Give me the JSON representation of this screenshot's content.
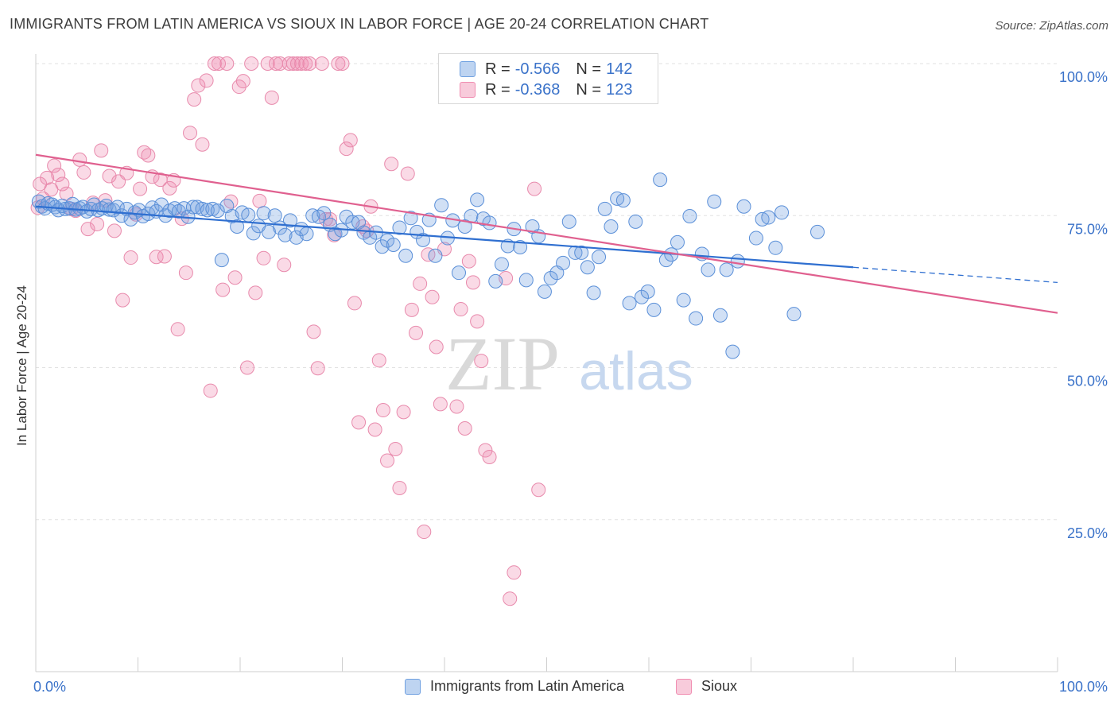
{
  "title": "IMMIGRANTS FROM LATIN AMERICA VS SIOUX IN LABOR FORCE | AGE 20-24 CORRELATION CHART",
  "source": "Source: ZipAtlas.com",
  "watermark": {
    "zip": "ZIP",
    "atlas": "atlas"
  },
  "legend_top": {
    "rows": [
      {
        "r_label": "R =",
        "r_value": "-0.566",
        "n_label": "N =",
        "n_value": "142",
        "color": "#6fa0e0"
      },
      {
        "r_label": "R =",
        "r_value": "-0.368",
        "n_label": "N =",
        "n_value": "123",
        "color": "#f08cb0"
      }
    ]
  },
  "legend_bottom": [
    {
      "label": "Immigrants from Latin America",
      "color": "#6fa0e0"
    },
    {
      "label": "Sioux",
      "color": "#f08cb0"
    }
  ],
  "chart_data": {
    "type": "scatter",
    "title": "IMMIGRANTS FROM LATIN AMERICA VS SIOUX IN LABOR FORCE | AGE 20-24 CORRELATION CHART",
    "xlabel": "",
    "ylabel": "In Labor Force | Age 20-24",
    "xlim": [
      0,
      100
    ],
    "ylim": [
      0,
      105
    ],
    "x_tick_labels": [
      {
        "value": 0,
        "label": "0.0%"
      },
      {
        "value": 100,
        "label": "100.0%"
      }
    ],
    "y_tick_labels": [
      {
        "value": 25,
        "label": "25.0%"
      },
      {
        "value": 50,
        "label": "50.0%"
      },
      {
        "value": 75,
        "label": "75.0%"
      },
      {
        "value": 100,
        "label": "100.0%"
      }
    ],
    "grid": true,
    "legend_position": "bottom",
    "series": [
      {
        "name": "Immigrants from Latin America",
        "color": "#6fa0e0",
        "stroke": "#5a8fd8",
        "trend": {
          "x0": 0,
          "y0": 76.5,
          "x1": 80,
          "y1": 66.5,
          "dash_to_x": 100,
          "dash_to_y": 64.0,
          "color": "#2f6fd0"
        },
        "points": [
          [
            0.3,
            77.3
          ],
          [
            0.6,
            76.5
          ],
          [
            0.9,
            76.2
          ],
          [
            1.2,
            77.0
          ],
          [
            1.6,
            76.8
          ],
          [
            1.9,
            76.4
          ],
          [
            2.2,
            75.9
          ],
          [
            2.6,
            76.6
          ],
          [
            2.9,
            76.1
          ],
          [
            3.3,
            76.2
          ],
          [
            3.6,
            76.9
          ],
          [
            3.9,
            76.0
          ],
          [
            4.3,
            76.2
          ],
          [
            4.6,
            76.4
          ],
          [
            5.0,
            75.7
          ],
          [
            5.4,
            76.1
          ],
          [
            5.7,
            76.8
          ],
          [
            6.1,
            75.9
          ],
          [
            6.5,
            76.2
          ],
          [
            6.9,
            76.6
          ],
          [
            7.2,
            76.0
          ],
          [
            7.6,
            75.9
          ],
          [
            8.0,
            76.4
          ],
          [
            8.4,
            75.0
          ],
          [
            8.9,
            76.1
          ],
          [
            9.3,
            74.4
          ],
          [
            9.7,
            75.5
          ],
          [
            10.1,
            75.9
          ],
          [
            10.5,
            74.9
          ],
          [
            11.0,
            75.3
          ],
          [
            11.4,
            76.3
          ],
          [
            11.8,
            75.7
          ],
          [
            12.3,
            76.8
          ],
          [
            12.7,
            75.0
          ],
          [
            13.1,
            75.8
          ],
          [
            13.6,
            76.2
          ],
          [
            14.0,
            75.7
          ],
          [
            14.5,
            76.2
          ],
          [
            14.9,
            74.8
          ],
          [
            15.4,
            76.4
          ],
          [
            15.8,
            76.4
          ],
          [
            16.3,
            76.1
          ],
          [
            16.8,
            75.9
          ],
          [
            17.3,
            76.1
          ],
          [
            17.8,
            75.8
          ],
          [
            18.2,
            67.7
          ],
          [
            18.7,
            76.6
          ],
          [
            19.2,
            74.9
          ],
          [
            19.7,
            73.2
          ],
          [
            20.2,
            75.5
          ],
          [
            20.8,
            75.1
          ],
          [
            21.3,
            72.1
          ],
          [
            21.8,
            73.3
          ],
          [
            22.3,
            75.4
          ],
          [
            22.8,
            72.3
          ],
          [
            23.4,
            75.0
          ],
          [
            23.9,
            73.0
          ],
          [
            24.4,
            71.8
          ],
          [
            24.9,
            74.2
          ],
          [
            25.5,
            71.4
          ],
          [
            26.0,
            72.8
          ],
          [
            26.5,
            72.0
          ],
          [
            27.1,
            75.0
          ],
          [
            27.7,
            74.8
          ],
          [
            28.2,
            75.4
          ],
          [
            28.8,
            73.5
          ],
          [
            29.3,
            72.0
          ],
          [
            29.9,
            72.6
          ],
          [
            30.4,
            74.8
          ],
          [
            31.0,
            73.9
          ],
          [
            31.6,
            73.9
          ],
          [
            32.1,
            72.2
          ],
          [
            32.7,
            71.4
          ],
          [
            33.3,
            72.2
          ],
          [
            33.9,
            69.9
          ],
          [
            34.4,
            70.9
          ],
          [
            35.0,
            70.2
          ],
          [
            35.6,
            73.0
          ],
          [
            36.2,
            68.4
          ],
          [
            36.7,
            74.6
          ],
          [
            37.3,
            72.3
          ],
          [
            37.9,
            71.0
          ],
          [
            38.5,
            74.3
          ],
          [
            39.1,
            68.4
          ],
          [
            39.7,
            76.7
          ],
          [
            40.3,
            71.3
          ],
          [
            40.8,
            74.2
          ],
          [
            41.4,
            65.6
          ],
          [
            42.0,
            73.2
          ],
          [
            42.6,
            74.9
          ],
          [
            43.2,
            77.6
          ],
          [
            43.8,
            74.5
          ],
          [
            44.4,
            73.8
          ],
          [
            45.0,
            64.2
          ],
          [
            45.6,
            67.0
          ],
          [
            46.2,
            70.0
          ],
          [
            46.8,
            72.8
          ],
          [
            47.4,
            69.8
          ],
          [
            48.0,
            64.4
          ],
          [
            48.6,
            73.2
          ],
          [
            49.2,
            71.6
          ],
          [
            49.8,
            62.5
          ],
          [
            50.4,
            64.7
          ],
          [
            51.0,
            65.6
          ],
          [
            51.6,
            67.2
          ],
          [
            52.2,
            74.0
          ],
          [
            52.8,
            68.9
          ],
          [
            53.4,
            68.9
          ],
          [
            54.0,
            66.5
          ],
          [
            54.6,
            62.3
          ],
          [
            55.1,
            68.2
          ],
          [
            55.7,
            76.1
          ],
          [
            56.3,
            73.2
          ],
          [
            56.9,
            77.8
          ],
          [
            57.5,
            77.5
          ],
          [
            58.1,
            60.6
          ],
          [
            58.7,
            74.0
          ],
          [
            59.3,
            61.6
          ],
          [
            59.9,
            62.5
          ],
          [
            60.5,
            59.5
          ],
          [
            61.1,
            80.9
          ],
          [
            61.7,
            67.7
          ],
          [
            62.2,
            68.6
          ],
          [
            62.8,
            70.6
          ],
          [
            63.4,
            61.1
          ],
          [
            64.0,
            74.9
          ],
          [
            64.6,
            58.1
          ],
          [
            65.2,
            68.7
          ],
          [
            65.8,
            66.1
          ],
          [
            66.4,
            77.3
          ],
          [
            67.0,
            58.6
          ],
          [
            67.6,
            66.1
          ],
          [
            68.2,
            52.6
          ],
          [
            68.7,
            67.5
          ],
          [
            69.3,
            76.5
          ],
          [
            70.5,
            71.3
          ],
          [
            71.1,
            74.4
          ],
          [
            71.7,
            74.7
          ],
          [
            72.4,
            69.7
          ],
          [
            73.0,
            75.5
          ],
          [
            74.2,
            58.8
          ],
          [
            76.5,
            72.3
          ]
        ]
      },
      {
        "name": "Sioux",
        "color": "#f08cb0",
        "stroke": "#e88aac",
        "trend": {
          "x0": 0,
          "y0": 85.0,
          "x1": 100,
          "y1": 59.0,
          "color": "#e0608f"
        },
        "points": [
          [
            0.2,
            76.3
          ],
          [
            0.4,
            80.2
          ],
          [
            0.7,
            77.8
          ],
          [
            1.1,
            81.2
          ],
          [
            1.5,
            79.3
          ],
          [
            1.8,
            83.2
          ],
          [
            2.2,
            81.7
          ],
          [
            2.6,
            80.2
          ],
          [
            3.0,
            78.6
          ],
          [
            3.5,
            76.1
          ],
          [
            3.9,
            75.8
          ],
          [
            4.3,
            84.2
          ],
          [
            4.7,
            82.1
          ],
          [
            5.1,
            72.8
          ],
          [
            5.6,
            77.1
          ],
          [
            6.0,
            73.6
          ],
          [
            6.4,
            85.7
          ],
          [
            6.8,
            77.5
          ],
          [
            7.2,
            81.5
          ],
          [
            7.7,
            72.5
          ],
          [
            8.1,
            80.6
          ],
          [
            8.5,
            61.1
          ],
          [
            8.9,
            82.0
          ],
          [
            9.3,
            68.1
          ],
          [
            9.8,
            75.2
          ],
          [
            10.2,
            79.4
          ],
          [
            10.6,
            85.4
          ],
          [
            11.0,
            84.9
          ],
          [
            11.4,
            81.4
          ],
          [
            11.8,
            68.2
          ],
          [
            12.2,
            80.9
          ],
          [
            12.6,
            68.3
          ],
          [
            13.1,
            79.5
          ],
          [
            13.5,
            80.8
          ],
          [
            13.9,
            56.3
          ],
          [
            14.3,
            74.5
          ],
          [
            14.7,
            65.6
          ],
          [
            15.1,
            88.6
          ],
          [
            15.5,
            94.1
          ],
          [
            15.9,
            96.4
          ],
          [
            16.3,
            86.7
          ],
          [
            16.7,
            97.2
          ],
          [
            17.1,
            46.2
          ],
          [
            17.5,
            100.0
          ],
          [
            17.9,
            100.0
          ],
          [
            18.3,
            62.8
          ],
          [
            18.7,
            100.0
          ],
          [
            19.1,
            77.3
          ],
          [
            19.5,
            64.8
          ],
          [
            19.9,
            96.2
          ],
          [
            20.3,
            97.1
          ],
          [
            20.7,
            50.0
          ],
          [
            21.1,
            100.0
          ],
          [
            21.5,
            62.3
          ],
          [
            21.9,
            77.4
          ],
          [
            22.3,
            68.0
          ],
          [
            22.7,
            100.0
          ],
          [
            23.1,
            94.4
          ],
          [
            23.5,
            100.0
          ],
          [
            23.9,
            100.0
          ],
          [
            24.3,
            66.9
          ],
          [
            24.8,
            100.0
          ],
          [
            25.2,
            100.0
          ],
          [
            25.6,
            100.0
          ],
          [
            26.0,
            100.0
          ],
          [
            26.4,
            100.0
          ],
          [
            26.8,
            100.0
          ],
          [
            27.2,
            55.9
          ],
          [
            27.6,
            49.9
          ],
          [
            28.0,
            100.0
          ],
          [
            28.4,
            74.4
          ],
          [
            28.8,
            74.4
          ],
          [
            29.2,
            71.8
          ],
          [
            29.6,
            100.0
          ],
          [
            30.0,
            100.0
          ],
          [
            30.4,
            86.0
          ],
          [
            30.8,
            87.4
          ],
          [
            31.2,
            60.6
          ],
          [
            31.6,
            41.0
          ],
          [
            32.0,
            73.2
          ],
          [
            32.4,
            72.5
          ],
          [
            32.8,
            76.5
          ],
          [
            33.2,
            39.8
          ],
          [
            33.6,
            51.2
          ],
          [
            34.0,
            43.0
          ],
          [
            34.4,
            34.7
          ],
          [
            34.8,
            83.5
          ],
          [
            35.2,
            36.6
          ],
          [
            35.6,
            30.2
          ],
          [
            36.0,
            42.7
          ],
          [
            36.4,
            81.9
          ],
          [
            36.8,
            59.5
          ],
          [
            37.2,
            55.7
          ],
          [
            37.6,
            63.8
          ],
          [
            38.0,
            23.0
          ],
          [
            38.4,
            68.6
          ],
          [
            38.8,
            61.6
          ],
          [
            39.2,
            53.4
          ],
          [
            39.6,
            44.0
          ],
          [
            40.0,
            69.5
          ],
          [
            40.4,
            100.0
          ],
          [
            40.8,
            94.9
          ],
          [
            41.2,
            43.6
          ],
          [
            41.6,
            59.6
          ],
          [
            42.0,
            40.0
          ],
          [
            42.4,
            67.5
          ],
          [
            42.8,
            64.0
          ],
          [
            43.2,
            57.6
          ],
          [
            43.6,
            51.1
          ],
          [
            44.0,
            36.4
          ],
          [
            44.4,
            35.3
          ],
          [
            44.8,
            100.0
          ],
          [
            45.2,
            100.0
          ],
          [
            45.6,
            100.0
          ],
          [
            46.0,
            64.7
          ],
          [
            46.4,
            12.0
          ],
          [
            46.8,
            16.3
          ],
          [
            47.2,
            100.0
          ],
          [
            47.6,
            100.0
          ],
          [
            48.0,
            100.0
          ],
          [
            48.4,
            100.0
          ],
          [
            48.8,
            79.4
          ],
          [
            49.2,
            29.9
          ]
        ]
      }
    ]
  }
}
